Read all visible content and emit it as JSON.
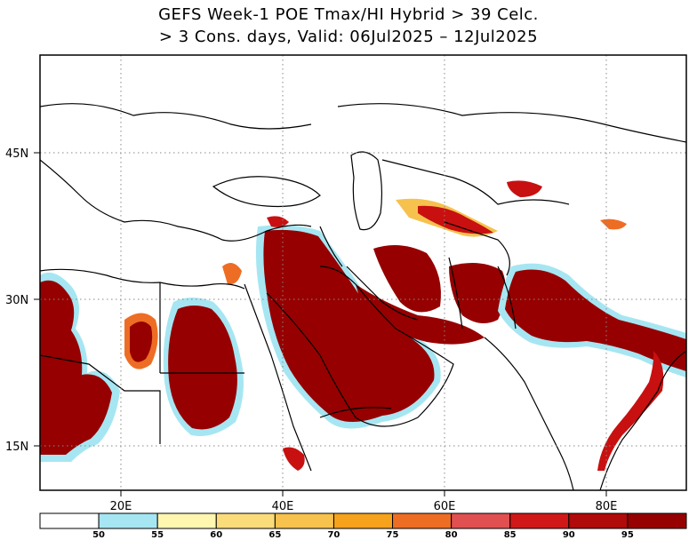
{
  "title_line1": "GEFS Week-1 POE Tmax/HI Hybrid > 39 Celc.",
  "title_line2": "> 3 Cons. days, Valid: 06Jul2025 – 12Jul2025",
  "lat_labels": [
    "45N",
    "30N",
    "15N"
  ],
  "lon_labels": [
    "20E",
    "40E",
    "60E",
    "80E"
  ],
  "colorbar": {
    "labels": [
      "50",
      "55",
      "60",
      "65",
      "70",
      "75",
      "80",
      "85",
      "90",
      "95"
    ],
    "colors": [
      "#ffffff",
      "#a6e6f2",
      "#fff6b0",
      "#fbdc7a",
      "#f7c24d",
      "#f6a21c",
      "#ee6d24",
      "#e05050",
      "#d01818",
      "#b00a0a",
      "#960000"
    ]
  },
  "map_colors": {
    "extreme": "#960000",
    "high": "#c81010",
    "moderate": "#ee6d24",
    "low": "#f6c24d",
    "edge": "#a6e6f2",
    "border": "#000000"
  }
}
